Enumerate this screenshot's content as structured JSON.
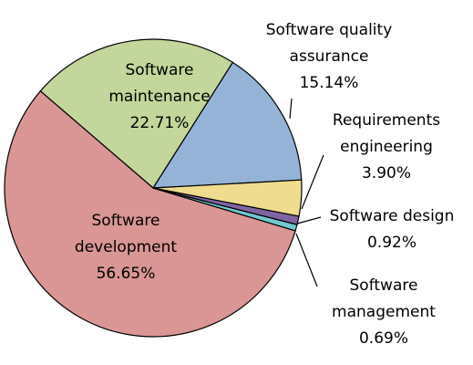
{
  "chart_data": {
    "type": "pie",
    "title": "",
    "slices": [
      {
        "name_lines": [
          "Software quality",
          "assurance"
        ],
        "value": 15.14,
        "value_label": "15.14%",
        "color": "#95B3D7"
      },
      {
        "name_lines": [
          "Software",
          "maintenance"
        ],
        "value": 22.71,
        "value_label": "22.71%",
        "color": "#C3D69B"
      },
      {
        "name_lines": [
          "Software",
          "development"
        ],
        "value": 56.65,
        "value_label": "56.65%",
        "color": "#D99694"
      },
      {
        "name_lines": [
          "Software",
          "management"
        ],
        "value": 0.69,
        "value_label": "0.69%",
        "color": "#72C8D0"
      },
      {
        "name_lines": [
          "Software design"
        ],
        "value": 0.92,
        "value_label": "0.92%",
        "color": "#8064A2"
      },
      {
        "name_lines": [
          "Requirements",
          "engineering"
        ],
        "value": 3.9,
        "value_label": "3.90%",
        "color": "#F0DC8E"
      }
    ],
    "legend": "none"
  }
}
